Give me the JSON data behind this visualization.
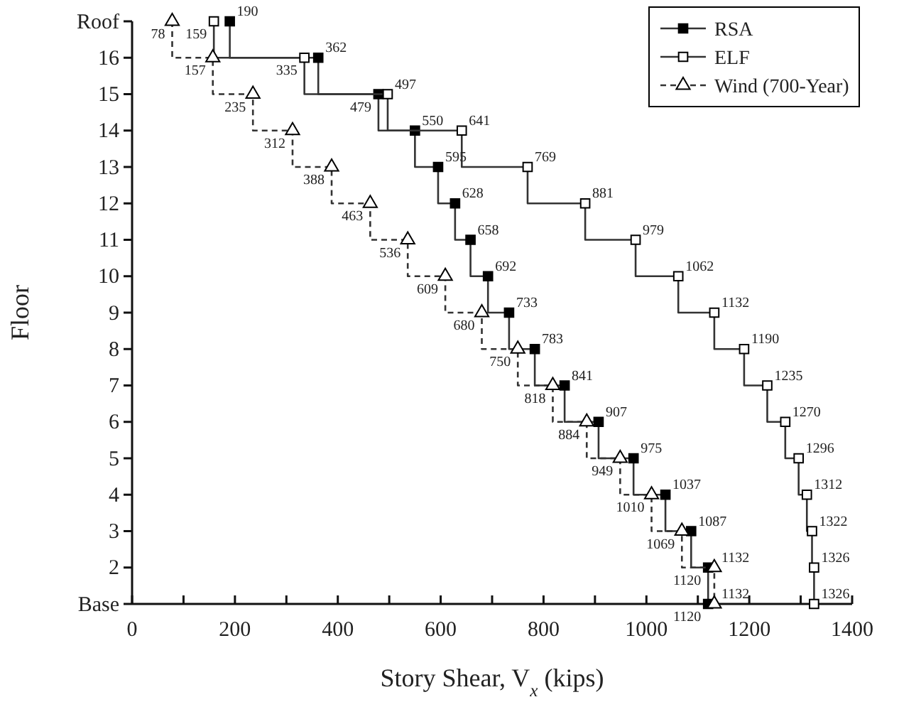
{
  "chart_data": {
    "type": "step",
    "orientation": "horizontal",
    "xlabel": "Story Shear, V$_{x}$ (kips)",
    "ylabel": "Floor",
    "categories": [
      "Roof",
      "16",
      "15",
      "14",
      "13",
      "12",
      "11",
      "10",
      "9",
      "8",
      "7",
      "6",
      "5",
      "4",
      "3",
      "2",
      "Base"
    ],
    "xlim": [
      0,
      1400
    ],
    "xticks": [
      0,
      {
        "value": 100,
        "label": null
      },
      200,
      {
        "value": 300,
        "label": null
      },
      400,
      {
        "value": 500,
        "label": null
      },
      600,
      {
        "value": 700,
        "label": null
      },
      800,
      {
        "value": 900,
        "label": null
      },
      1000,
      {
        "value": 1100,
        "label": null
      },
      1200,
      {
        "value": 1300,
        "label": null
      },
      1400
    ],
    "grid": false,
    "legend": "top right",
    "data_labels": true,
    "series": [
      {
        "name": "RSA",
        "color": "#000000",
        "marker": "square",
        "line_style": "solid",
        "values": [
          190,
          362,
          479,
          550,
          595,
          628,
          658,
          692,
          733,
          783,
          841,
          907,
          975,
          1037,
          1087,
          1120,
          1120
        ]
      },
      {
        "name": "ELF",
        "color": "#ffffff",
        "marker": "square",
        "line_style": "solid",
        "values": [
          159,
          335,
          497,
          641,
          769,
          881,
          979,
          1062,
          1132,
          1190,
          1235,
          1270,
          1296,
          1312,
          1322,
          1326,
          1326
        ]
      },
      {
        "name": "Wind (700-Year)",
        "color": "#ffffff",
        "marker": "triangle",
        "line_style": "dashed",
        "values": [
          78,
          157,
          235,
          312,
          388,
          463,
          536,
          609,
          680,
          750,
          818,
          884,
          949,
          1010,
          1069,
          1132,
          1132
        ]
      }
    ]
  }
}
